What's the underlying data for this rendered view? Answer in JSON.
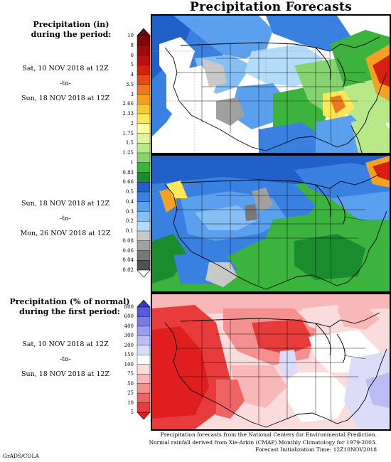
{
  "header": {
    "title": "Precipitation Forecasts"
  },
  "left": {
    "precip_heading": [
      "Precipitation (in)",
      "during the period:"
    ],
    "period1": {
      "start": "Sat, 10 NOV 2018 at 12Z",
      "sep": "-to-",
      "end": "Sun, 18 NOV 2018 at 12Z"
    },
    "period2": {
      "start": "Sun, 18 NOV 2018 at 12Z",
      "sep": "-to-",
      "end": "Mon, 26 NOV 2018 at 12Z"
    },
    "pct_heading": [
      "Precipitation (% of normal)",
      "during the first period:"
    ],
    "period3": {
      "start": "Sat, 10 NOV 2018 at 12Z",
      "sep": "-to-",
      "end": "Sun, 18 NOV 2018 at 12Z"
    }
  },
  "colorbar_precip": {
    "labels": [
      "10",
      "8",
      "6",
      "5",
      "4",
      "3.5",
      "3",
      "2.66",
      "2.33",
      "2",
      "1.75",
      "1.5",
      "1.25",
      "1",
      "0.83",
      "0.66",
      "0.5",
      "0.4",
      "0.3",
      "0.2",
      "0.1",
      "0.08",
      "0.06",
      "0.04",
      "0.02"
    ],
    "colors": [
      "#5a1010",
      "#7a0a0a",
      "#9b0c0c",
      "#bb1010",
      "#d82010",
      "#e84a10",
      "#f07818",
      "#f5a020",
      "#fac830",
      "#fde85a",
      "#ffffa0",
      "#e2f59a",
      "#b8e888",
      "#86d470",
      "#3cb33c",
      "#1a8c2e",
      "#2060c8",
      "#3a80e0",
      "#5aa0ee",
      "#84c0f4",
      "#b4dcfa",
      "#c8c8c8",
      "#a0a0a0",
      "#787878",
      "#505050",
      "#ffffff"
    ]
  },
  "colorbar_pct": {
    "labels": [
      "800",
      "600",
      "400",
      "300",
      "200",
      "150",
      "100",
      "75",
      "50",
      "25",
      "10",
      "5"
    ],
    "colors": [
      "#3a3ac8",
      "#5a5ad8",
      "#7a7ae4",
      "#9c9cee",
      "#bcbcf4",
      "#dcdcf8",
      "#ffffff",
      "#fbdcdc",
      "#f8b8b8",
      "#f49090",
      "#ee6464",
      "#e83c3c",
      "#e01e1e"
    ]
  },
  "maps": [
    {
      "name": "precip-map-period1"
    },
    {
      "name": "precip-map-period2"
    },
    {
      "name": "pct-normal-map-period1"
    }
  ],
  "footer": {
    "lines": [
      "Precipitation forecasts from the National Centers for Environmental Prediction.",
      "Normal rainfall derived from Xie-Arkin (CMAP) Monthly Climatology for 1979-2003.",
      "Forecast Initialization Time: 12Z10NOV2018"
    ],
    "credit": "GrADS/COLA"
  }
}
